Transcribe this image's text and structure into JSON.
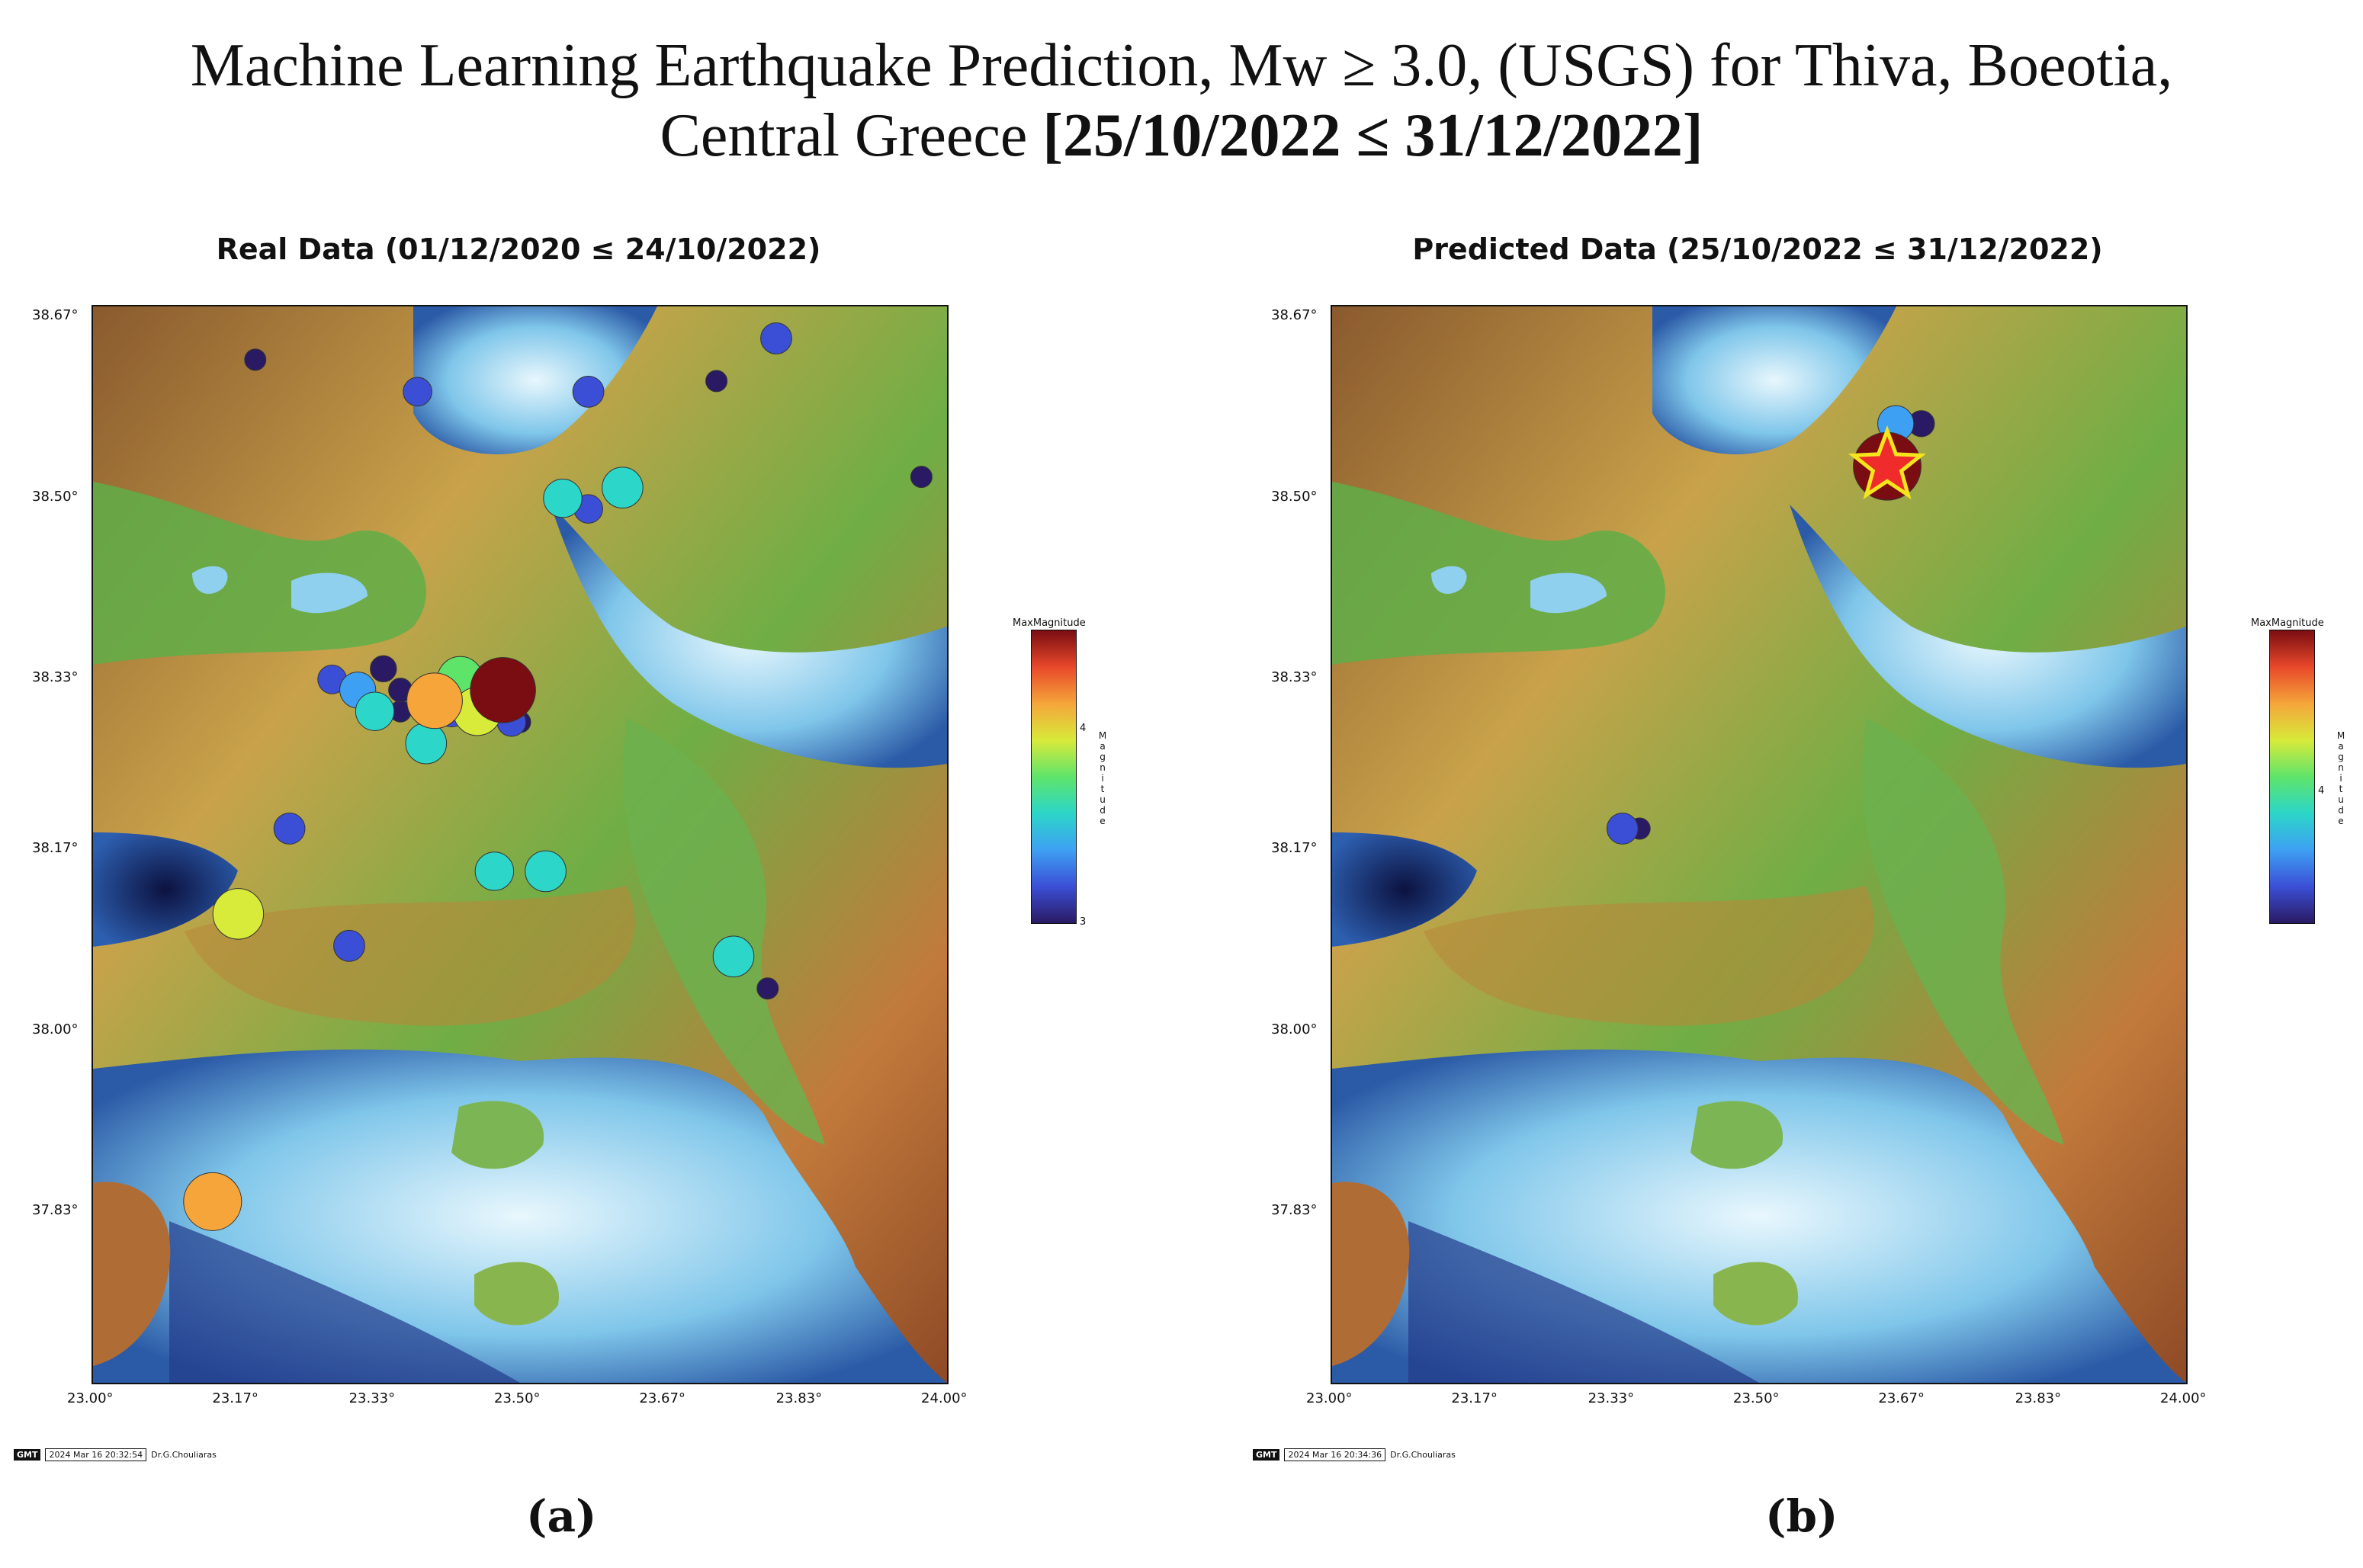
{
  "title": {
    "line1": "Machine Learning Earthquake Prediction, Mw ≥ 3.0, (USGS) for Thiva, Boeotia,",
    "line2_prefix": "Central Greece ",
    "line2_bold": "[25/10/2022 ≤ 31/12/2022]"
  },
  "panels": [
    {
      "title": "Real Data (01/12/2020 ≤ 24/10/2022)",
      "sub_label": "(a)",
      "timestamp": "2024 Mar 16 20:32:54",
      "author": "Dr.G.Chouliaras",
      "colorbar": {
        "title": "MaxMagnitude",
        "label": "Magnitude",
        "ticks": [
          "4",
          "3"
        ]
      },
      "events": [
        {
          "lon": 23.19,
          "lat": 38.63,
          "mag": 3.0
        },
        {
          "lon": 23.38,
          "lat": 38.6,
          "mag": 3.3
        },
        {
          "lon": 23.58,
          "lat": 38.6,
          "mag": 3.4
        },
        {
          "lon": 23.73,
          "lat": 38.61,
          "mag": 3.0
        },
        {
          "lon": 23.8,
          "lat": 38.65,
          "mag": 3.4
        },
        {
          "lon": 23.97,
          "lat": 38.52,
          "mag": 3.0
        },
        {
          "lon": 23.55,
          "lat": 38.5,
          "mag": 3.7
        },
        {
          "lon": 23.62,
          "lat": 38.51,
          "mag": 3.8
        },
        {
          "lon": 23.58,
          "lat": 38.49,
          "mag": 3.3
        },
        {
          "lon": 23.28,
          "lat": 38.33,
          "mag": 3.3
        },
        {
          "lon": 23.31,
          "lat": 38.32,
          "mag": 3.6
        },
        {
          "lon": 23.34,
          "lat": 38.34,
          "mag": 3.2
        },
        {
          "lon": 23.36,
          "lat": 38.32,
          "mag": 3.1
        },
        {
          "lon": 23.4,
          "lat": 38.31,
          "mag": 4.4
        },
        {
          "lon": 23.43,
          "lat": 38.33,
          "mag": 4.0
        },
        {
          "lon": 23.45,
          "lat": 38.3,
          "mag": 4.1
        },
        {
          "lon": 23.48,
          "lat": 38.32,
          "mag": 4.8
        },
        {
          "lon": 23.33,
          "lat": 38.3,
          "mag": 3.7
        },
        {
          "lon": 23.36,
          "lat": 38.3,
          "mag": 3.0
        },
        {
          "lon": 23.42,
          "lat": 38.3,
          "mag": 3.4
        },
        {
          "lon": 23.39,
          "lat": 38.27,
          "mag": 3.8
        },
        {
          "lon": 23.49,
          "lat": 38.29,
          "mag": 3.3
        },
        {
          "lon": 23.5,
          "lat": 38.29,
          "mag": 3.0
        },
        {
          "lon": 23.23,
          "lat": 38.19,
          "mag": 3.4
        },
        {
          "lon": 23.47,
          "lat": 38.15,
          "mag": 3.7
        },
        {
          "lon": 23.53,
          "lat": 38.15,
          "mag": 3.8
        },
        {
          "lon": 23.17,
          "lat": 38.11,
          "mag": 4.2
        },
        {
          "lon": 23.3,
          "lat": 38.08,
          "mag": 3.4
        },
        {
          "lon": 23.75,
          "lat": 38.07,
          "mag": 3.8
        },
        {
          "lon": 23.75,
          "lat": 38.07,
          "mag": 3.0
        },
        {
          "lon": 23.79,
          "lat": 38.04,
          "mag": 3.0
        },
        {
          "lon": 23.14,
          "lat": 37.84,
          "mag": 4.5
        }
      ]
    },
    {
      "title": "Predicted Data (25/10/2022 ≤ 31/12/2022)",
      "sub_label": "(b)",
      "timestamp": "2024 Mar 16 20:34:36",
      "author": "Dr.G.Chouliaras",
      "colorbar": {
        "title": "MaxMagnitude",
        "label": "Magnitude",
        "ticks": [
          "4"
        ]
      },
      "events": [
        {
          "lon": 23.65,
          "lat": 38.53,
          "mag": 4.9,
          "star": true
        },
        {
          "lon": 23.66,
          "lat": 38.57,
          "mag": 3.6
        },
        {
          "lon": 23.69,
          "lat": 38.57,
          "mag": 3.2
        },
        {
          "lon": 23.34,
          "lat": 38.19,
          "mag": 3.4
        },
        {
          "lon": 23.36,
          "lat": 38.19,
          "mag": 3.0
        }
      ]
    }
  ],
  "axes": {
    "lon_ticks": [
      "23.00°",
      "23.17°",
      "23.33°",
      "23.50°",
      "23.67°",
      "23.83°",
      "24.00°"
    ],
    "lat_ticks": [
      "38.67°",
      "38.50°",
      "38.33°",
      "38.17°",
      "38.00°",
      "37.83°"
    ],
    "lon_range": [
      23.0,
      24.0
    ],
    "lat_range": [
      37.67,
      38.68
    ]
  },
  "gmt_logo": "GMT",
  "colors": {
    "sea_deep": "#1a2870",
    "sea_shallow": "#bfe6f6",
    "land_low": "#5aa84a",
    "land_high": "#a3562b"
  }
}
